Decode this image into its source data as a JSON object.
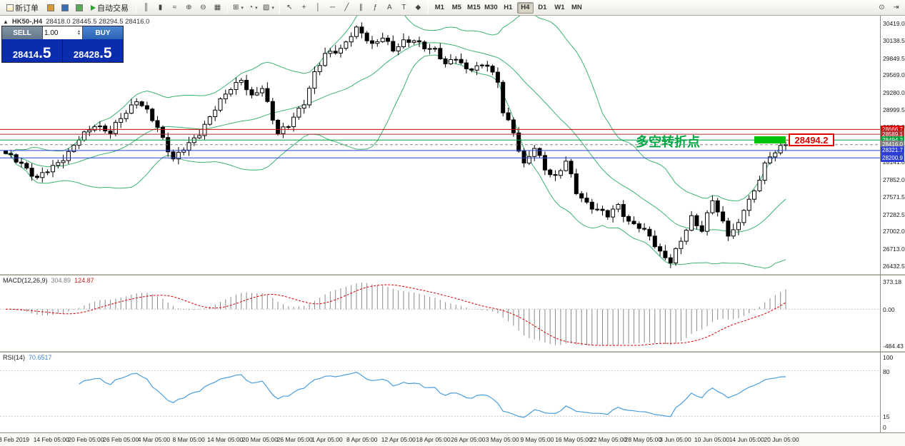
{
  "toolbar": {
    "new_order": {
      "label": "新订单"
    },
    "autotrading": {
      "label": "自动交易"
    },
    "icon_buttons_left": [
      {
        "name": "chart-window-button",
        "color": "#d99a33"
      },
      {
        "name": "profiles-button",
        "color": "#3b6fb5"
      },
      {
        "name": "metaeditor-button",
        "color": "#58a858"
      }
    ],
    "chart_type_buttons": [
      {
        "name": "bar-chart-button",
        "glyph": "║"
      },
      {
        "name": "candlestick-chart-button",
        "glyph": "▮"
      },
      {
        "name": "line-chart-button",
        "glyph": "≈"
      }
    ],
    "zoom_buttons": [
      {
        "name": "zoom-in-button",
        "glyph": "⊕"
      },
      {
        "name": "zoom-out-button",
        "glyph": "⊖"
      }
    ],
    "window_buttons": [
      {
        "name": "tile-windows-button",
        "glyph": "▦"
      }
    ],
    "dropdown_buttons": [
      {
        "name": "indicators-button",
        "glyph": "⊞"
      },
      {
        "name": "periods-button",
        "glyph": "◔"
      },
      {
        "name": "templates-button",
        "glyph": "▧"
      }
    ],
    "drawing_buttons": [
      {
        "name": "cursor-button",
        "glyph": "↖"
      },
      {
        "name": "crosshair-button",
        "glyph": "+"
      },
      {
        "name": "vertical-line-button",
        "glyph": "│"
      },
      {
        "name": "horizontal-line-button",
        "glyph": "─"
      },
      {
        "name": "trendline-button",
        "glyph": "╱"
      },
      {
        "name": "channel-button",
        "glyph": "∥"
      },
      {
        "name": "fibonacci-button",
        "glyph": "ƒ"
      },
      {
        "name": "text-button",
        "glyph": "A"
      },
      {
        "name": "label-button",
        "glyph": "T"
      },
      {
        "name": "arrows-button",
        "glyph": "◆"
      }
    ],
    "timeframes": [
      "M1",
      "M5",
      "M15",
      "M30",
      "H1",
      "H4",
      "D1",
      "W1",
      "MN"
    ],
    "active_timeframe": "H4",
    "right_buttons": [
      {
        "name": "search-button",
        "glyph": "⊙"
      },
      {
        "name": "chart-shift-button",
        "glyph": "⇥"
      }
    ]
  },
  "trade_panel": {
    "sell_label": "SELL",
    "buy_label": "BUY",
    "volume": "1.00",
    "sell_price": {
      "prefix": "28414",
      "big": ".5"
    },
    "buy_price": {
      "prefix": "28428",
      "big": ".5"
    }
  },
  "chart": {
    "title_symbol": "HK50-,H4",
    "title_ohlc": "28418.0 28445.5 28294.5 28416.0",
    "annotation_text": "多空转折点",
    "annotation_price": "28494.2",
    "colors": {
      "bull": "#ffffff",
      "bear": "#000000",
      "outline": "#000000",
      "bollinger": "#3CB371",
      "macd_hist": "#8a8a8a",
      "macd_signal": "#d40000",
      "rsi_line": "#4a9ede",
      "level_dash": "#c4c4c4"
    }
  },
  "chart_data": {
    "type": "candlestick",
    "symbol": "HK50-",
    "timeframe": "H4",
    "ohlc_display": {
      "open": 28418.0,
      "high": 28445.5,
      "low": 28294.5,
      "close": 28416.0
    },
    "price_range": [
      26432.5,
      30419.0
    ],
    "y_axis_ticks": [
      30419.0,
      30138.5,
      29849.5,
      29569.0,
      29280.0,
      28999.5,
      28719.0,
      28430.5,
      28141.0,
      27852.0,
      27571.5,
      27282.5,
      27002.0,
      26713.0,
      26432.5
    ],
    "candle_count": 150,
    "close_anchors": [
      [
        0,
        28250
      ],
      [
        3,
        28120
      ],
      [
        6,
        27850
      ],
      [
        9,
        28060
      ],
      [
        12,
        28280
      ],
      [
        14,
        28500
      ],
      [
        17,
        28760
      ],
      [
        20,
        28600
      ],
      [
        22,
        28860
      ],
      [
        25,
        29160
      ],
      [
        27,
        28950
      ],
      [
        29,
        28700
      ],
      [
        32,
        28180
      ],
      [
        35,
        28420
      ],
      [
        37,
        28620
      ],
      [
        40,
        29000
      ],
      [
        43,
        29360
      ],
      [
        45,
        29500
      ],
      [
        47,
        29180
      ],
      [
        49,
        29350
      ],
      [
        52,
        28620
      ],
      [
        54,
        28720
      ],
      [
        57,
        29120
      ],
      [
        59,
        29600
      ],
      [
        61,
        29880
      ],
      [
        64,
        30000
      ],
      [
        66,
        30230
      ],
      [
        67,
        30310
      ],
      [
        70,
        30060
      ],
      [
        72,
        30210
      ],
      [
        74,
        29950
      ],
      [
        76,
        30100
      ],
      [
        78,
        30160
      ],
      [
        80,
        30010
      ],
      [
        82,
        29950
      ],
      [
        84,
        29760
      ],
      [
        86,
        29860
      ],
      [
        88,
        29620
      ],
      [
        90,
        29700
      ],
      [
        92,
        29760
      ],
      [
        94,
        29420
      ],
      [
        95,
        28950
      ],
      [
        97,
        28620
      ],
      [
        99,
        28100
      ],
      [
        101,
        28360
      ],
      [
        103,
        28010
      ],
      [
        105,
        27900
      ],
      [
        107,
        28150
      ],
      [
        109,
        27620
      ],
      [
        111,
        27460
      ],
      [
        113,
        27360
      ],
      [
        115,
        27240
      ],
      [
        117,
        27420
      ],
      [
        119,
        27160
      ],
      [
        121,
        27060
      ],
      [
        123,
        26900
      ],
      [
        125,
        26660
      ],
      [
        127,
        26500
      ],
      [
        129,
        26820
      ],
      [
        131,
        27230
      ],
      [
        133,
        27020
      ],
      [
        135,
        27500
      ],
      [
        136,
        27300
      ],
      [
        138,
        26960
      ],
      [
        140,
        27120
      ],
      [
        141,
        27360
      ],
      [
        143,
        27620
      ],
      [
        145,
        28120
      ],
      [
        147,
        28320
      ],
      [
        149,
        28416
      ]
    ],
    "price_lines": [
      {
        "price": 28666.7,
        "label": "28666.7",
        "color": "#d40000",
        "dashed": false
      },
      {
        "price": 28589.1,
        "label": "28589.1",
        "color": "#b03030",
        "dashed": false
      },
      {
        "price": 28494.2,
        "label": "28494.2",
        "color": "#00a13a",
        "dashed": false
      },
      {
        "price": 28416.0,
        "label": "28416.0",
        "color": "#808080",
        "dashed": true
      },
      {
        "price": 28321.7,
        "label": "28321.7",
        "color": "#2d3fd4",
        "dashed": false
      },
      {
        "price": 28200.9,
        "label": "28200.9",
        "color": "#2d3fd4",
        "dashed": false
      }
    ],
    "annotation_anchor_price": 28494.2,
    "indicators": {
      "bollinger": {
        "period": 20,
        "deviation": 2
      },
      "macd": {
        "fast": 12,
        "slow": 26,
        "signal": 9
      },
      "rsi": {
        "period": 14,
        "levels": [
          80,
          15
        ]
      }
    }
  },
  "macd": {
    "label": "MACD(12,26,9)",
    "value1": "304.89",
    "value2": "124.87",
    "axis_values": [
      373.18,
      0.0,
      -484.43
    ]
  },
  "rsi": {
    "label": "RSI(14)",
    "value": "70.6517",
    "axis_values": [
      100,
      80,
      15,
      0
    ],
    "levels": [
      80,
      15
    ]
  },
  "time_axis": [
    "3 Feb 2019",
    "14 Feb 05:00",
    "20 Feb 05:00",
    "26 Feb 05:00",
    "4 Mar 05:00",
    "8 Mar 05:00",
    "14 Mar 05:00",
    "20 Mar 05:00",
    "26 Mar 05:00",
    "1 Apr 05:00",
    "8 Apr 05:00",
    "12 Apr 05:00",
    "18 Apr 05:00",
    "26 Apr 05:00",
    "3 May 05:00",
    "9 May 05:00",
    "16 May 05:00",
    "22 May 05:00",
    "28 May 05:00",
    "3 Jun 05:00",
    "10 Jun 05:00",
    "14 Jun 05:00",
    "20 Jun 05:00"
  ]
}
